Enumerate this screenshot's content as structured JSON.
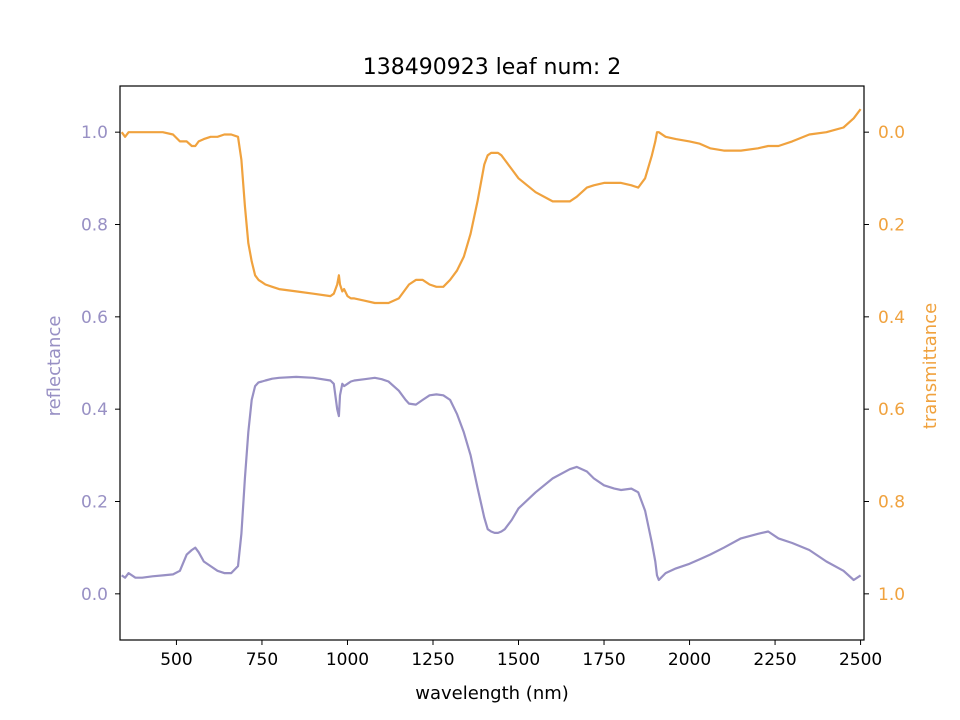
{
  "chart_data": {
    "type": "line",
    "title": "138490923 leaf num: 2",
    "xlabel": "wavelength (nm)",
    "ylabel_left": "reflectance",
    "ylabel_right": "transmittance",
    "xlim": [
      335,
      2510
    ],
    "ylim_left": [
      -0.1,
      1.1
    ],
    "ylim_right_inverted": [
      1.1,
      -0.1
    ],
    "xticks": [
      500,
      750,
      1000,
      1250,
      1500,
      1750,
      2000,
      2250,
      2500
    ],
    "yticks_left": [
      0.0,
      0.2,
      0.4,
      0.6,
      0.8,
      1.0
    ],
    "yticks_right": [
      0.0,
      0.2,
      0.4,
      0.6,
      0.8,
      1.0
    ],
    "grid": false,
    "colors": {
      "reflectance": "#9890c4",
      "transmittance": "#f0a23e"
    },
    "series": [
      {
        "key": "reflectance",
        "axis": "left",
        "x": [
          340,
          350,
          360,
          380,
          400,
          430,
          460,
          490,
          510,
          530,
          545,
          555,
          565,
          580,
          600,
          620,
          640,
          660,
          680,
          690,
          700,
          710,
          720,
          730,
          740,
          750,
          760,
          780,
          800,
          850,
          900,
          950,
          960,
          970,
          975,
          978,
          985,
          990,
          1000,
          1010,
          1020,
          1050,
          1080,
          1100,
          1120,
          1150,
          1170,
          1180,
          1200,
          1220,
          1240,
          1260,
          1280,
          1300,
          1320,
          1340,
          1360,
          1380,
          1400,
          1410,
          1420,
          1430,
          1440,
          1450,
          1460,
          1480,
          1500,
          1550,
          1600,
          1650,
          1670,
          1700,
          1720,
          1750,
          1780,
          1800,
          1830,
          1850,
          1870,
          1890,
          1900,
          1905,
          1910,
          1930,
          1960,
          2000,
          2030,
          2060,
          2100,
          2150,
          2200,
          2230,
          2260,
          2300,
          2350,
          2400,
          2450,
          2480,
          2500
        ],
        "values": [
          0.04,
          0.035,
          0.045,
          0.035,
          0.035,
          0.038,
          0.04,
          0.042,
          0.05,
          0.085,
          0.095,
          0.1,
          0.09,
          0.07,
          0.06,
          0.05,
          0.045,
          0.045,
          0.06,
          0.13,
          0.25,
          0.35,
          0.42,
          0.45,
          0.458,
          0.46,
          0.462,
          0.466,
          0.468,
          0.47,
          0.468,
          0.462,
          0.455,
          0.4,
          0.385,
          0.43,
          0.455,
          0.45,
          0.455,
          0.46,
          0.462,
          0.465,
          0.468,
          0.465,
          0.46,
          0.44,
          0.42,
          0.412,
          0.41,
          0.42,
          0.43,
          0.432,
          0.43,
          0.42,
          0.39,
          0.35,
          0.3,
          0.23,
          0.165,
          0.14,
          0.135,
          0.132,
          0.132,
          0.135,
          0.14,
          0.16,
          0.185,
          0.22,
          0.25,
          0.27,
          0.275,
          0.265,
          0.25,
          0.235,
          0.228,
          0.225,
          0.228,
          0.22,
          0.18,
          0.11,
          0.07,
          0.04,
          0.03,
          0.045,
          0.055,
          0.065,
          0.075,
          0.085,
          0.1,
          0.12,
          0.13,
          0.135,
          0.12,
          0.11,
          0.095,
          0.07,
          0.05,
          0.03,
          0.04
        ]
      },
      {
        "key": "transmittance",
        "axis": "right",
        "x": [
          340,
          350,
          360,
          380,
          400,
          430,
          460,
          490,
          510,
          530,
          545,
          555,
          565,
          580,
          600,
          620,
          640,
          660,
          680,
          690,
          700,
          710,
          720,
          730,
          740,
          750,
          760,
          780,
          800,
          850,
          900,
          950,
          960,
          970,
          975,
          978,
          985,
          990,
          1000,
          1010,
          1020,
          1050,
          1080,
          1100,
          1120,
          1150,
          1170,
          1180,
          1200,
          1220,
          1240,
          1260,
          1280,
          1300,
          1320,
          1340,
          1360,
          1380,
          1400,
          1410,
          1420,
          1430,
          1440,
          1450,
          1460,
          1480,
          1500,
          1550,
          1600,
          1650,
          1670,
          1700,
          1720,
          1750,
          1780,
          1800,
          1830,
          1850,
          1870,
          1890,
          1900,
          1905,
          1910,
          1930,
          1960,
          2000,
          2030,
          2060,
          2100,
          2150,
          2200,
          2230,
          2260,
          2300,
          2350,
          2400,
          2450,
          2480,
          2500
        ],
        "values": [
          0.0,
          0.01,
          0.0,
          0.0,
          0.0,
          0.0,
          0.0,
          0.005,
          0.02,
          0.02,
          0.03,
          0.03,
          0.02,
          0.015,
          0.01,
          0.01,
          0.005,
          0.005,
          0.01,
          0.06,
          0.16,
          0.24,
          0.28,
          0.31,
          0.32,
          0.325,
          0.33,
          0.335,
          0.34,
          0.345,
          0.35,
          0.355,
          0.35,
          0.33,
          0.31,
          0.33,
          0.345,
          0.34,
          0.355,
          0.36,
          0.36,
          0.365,
          0.37,
          0.37,
          0.37,
          0.36,
          0.34,
          0.33,
          0.32,
          0.32,
          0.33,
          0.335,
          0.335,
          0.32,
          0.3,
          0.27,
          0.22,
          0.15,
          0.07,
          0.05,
          0.045,
          0.045,
          0.045,
          0.05,
          0.06,
          0.08,
          0.1,
          0.13,
          0.15,
          0.15,
          0.14,
          0.12,
          0.115,
          0.11,
          0.11,
          0.11,
          0.115,
          0.12,
          0.1,
          0.05,
          0.02,
          0.0,
          0.0,
          0.01,
          0.015,
          0.02,
          0.025,
          0.035,
          0.04,
          0.04,
          0.035,
          0.03,
          0.03,
          0.02,
          0.005,
          0.0,
          -0.01,
          -0.03,
          -0.05
        ]
      }
    ]
  }
}
